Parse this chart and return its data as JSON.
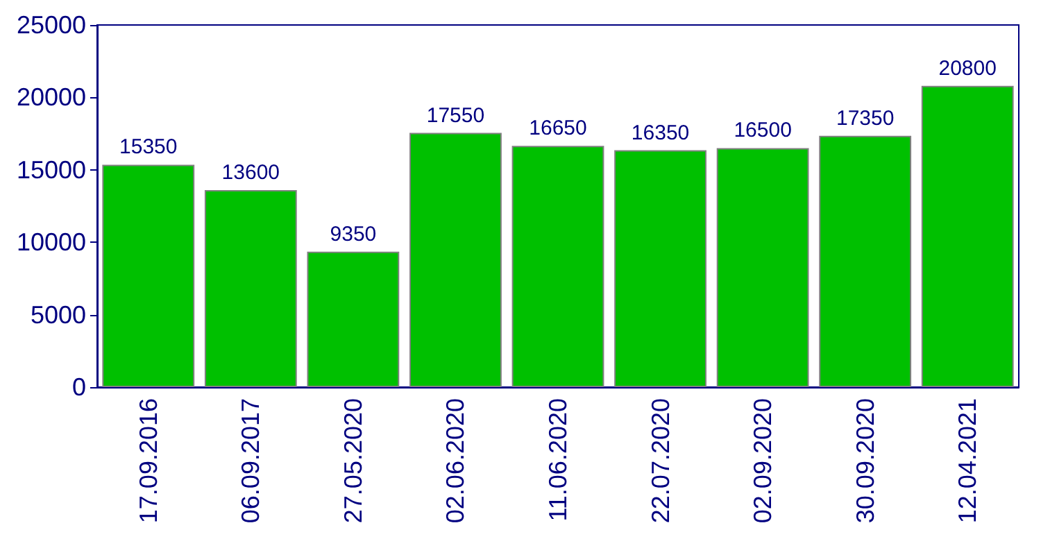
{
  "chart_data": {
    "type": "bar",
    "categories": [
      "17.09.2016",
      "06.09.2017",
      "27.05.2020",
      "02.06.2020",
      "11.06.2020",
      "22.07.2020",
      "02.09.2020",
      "30.09.2020",
      "12.04.2021"
    ],
    "values": [
      15350,
      13600,
      9350,
      17550,
      16650,
      16350,
      16500,
      17350,
      20800
    ],
    "color": "#00c000",
    "ylim": [
      0,
      25000
    ],
    "yticks": [
      0,
      5000,
      10000,
      15000,
      20000,
      25000
    ],
    "grid": false,
    "data_labels": true
  }
}
